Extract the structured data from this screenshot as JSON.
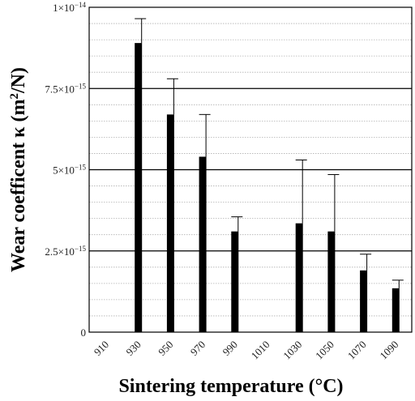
{
  "chart_data": {
    "type": "bar",
    "xlabel": "Sintering temperature (°C)",
    "ylabel": {
      "prefix": "Wear coefficent κ (m",
      "sup": "2",
      "suffix": "/N)"
    },
    "categories": [
      "910",
      "930",
      "950",
      "970",
      "990",
      "1010",
      "1030",
      "1050",
      "1070",
      "1090"
    ],
    "values": [
      0,
      8.9e-15,
      6.7e-15,
      5.4e-15,
      3.1e-15,
      0,
      3.35e-15,
      3.1e-15,
      1.9e-15,
      1.35e-15
    ],
    "error_upper": [
      0,
      7.5e-16,
      1.1e-15,
      1.3e-15,
      4.5e-16,
      0,
      1.95e-15,
      1.75e-15,
      5e-16,
      2.5e-16
    ],
    "ylim": [
      0,
      1e-14
    ],
    "yticks": [
      {
        "value": 0,
        "mantissa": "0",
        "exponent": ""
      },
      {
        "value": 2.5e-15,
        "mantissa": "2.5×10",
        "exponent": "−15"
      },
      {
        "value": 5e-15,
        "mantissa": "5×10",
        "exponent": "−15"
      },
      {
        "value": 7.5e-15,
        "mantissa": "7.5×10",
        "exponent": "−15"
      },
      {
        "value": 1e-14,
        "mantissa": "1×10",
        "exponent": "−14"
      }
    ],
    "grid": true,
    "colors": {
      "bar": "#000000",
      "grid_major": "#000000",
      "grid_minor": "#b0b0b0"
    }
  }
}
